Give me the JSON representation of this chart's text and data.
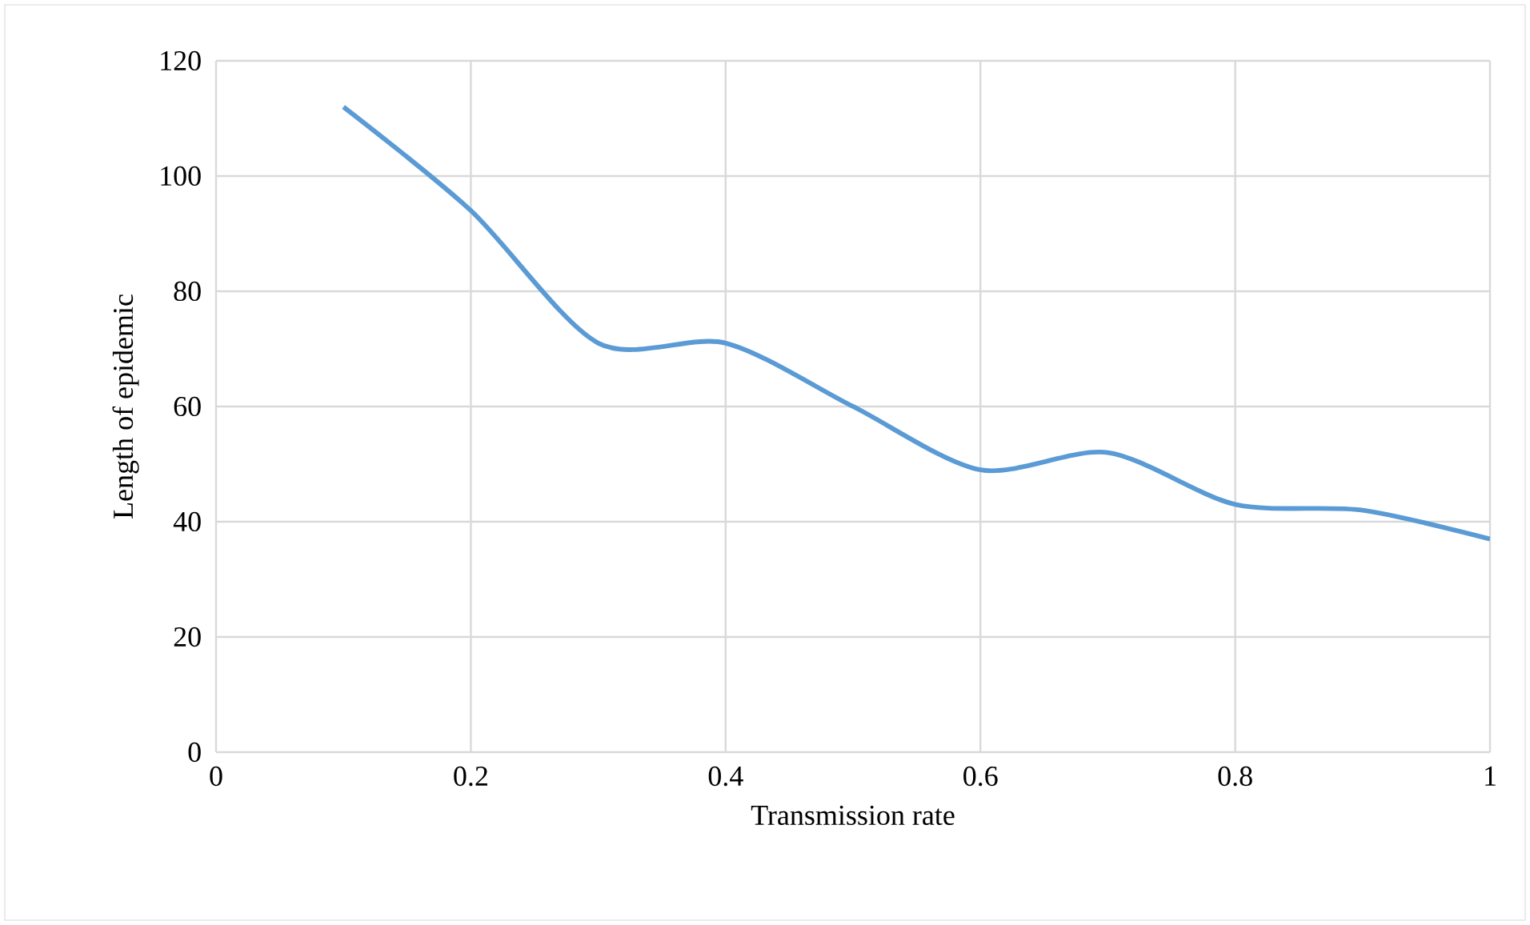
{
  "chart_data": {
    "type": "line",
    "xlabel": "Transmission rate",
    "ylabel": "Length of epidemic",
    "x": [
      0.1,
      0.2,
      0.3,
      0.4,
      0.5,
      0.6,
      0.7,
      0.8,
      0.9,
      1.0
    ],
    "series": [
      {
        "color": "#5b9bd5",
        "values": [
          112,
          94,
          71,
          71,
          60,
          49,
          52,
          43,
          42,
          37
        ]
      }
    ],
    "xlim": [
      0,
      1
    ],
    "ylim": [
      0,
      120
    ],
    "xticks": [
      0,
      0.2,
      0.4,
      0.6,
      0.8,
      1
    ],
    "yticks": [
      0,
      20,
      40,
      60,
      80,
      100,
      120
    ],
    "grid": true,
    "legend": false,
    "marker": "none",
    "line_style": "solid"
  }
}
